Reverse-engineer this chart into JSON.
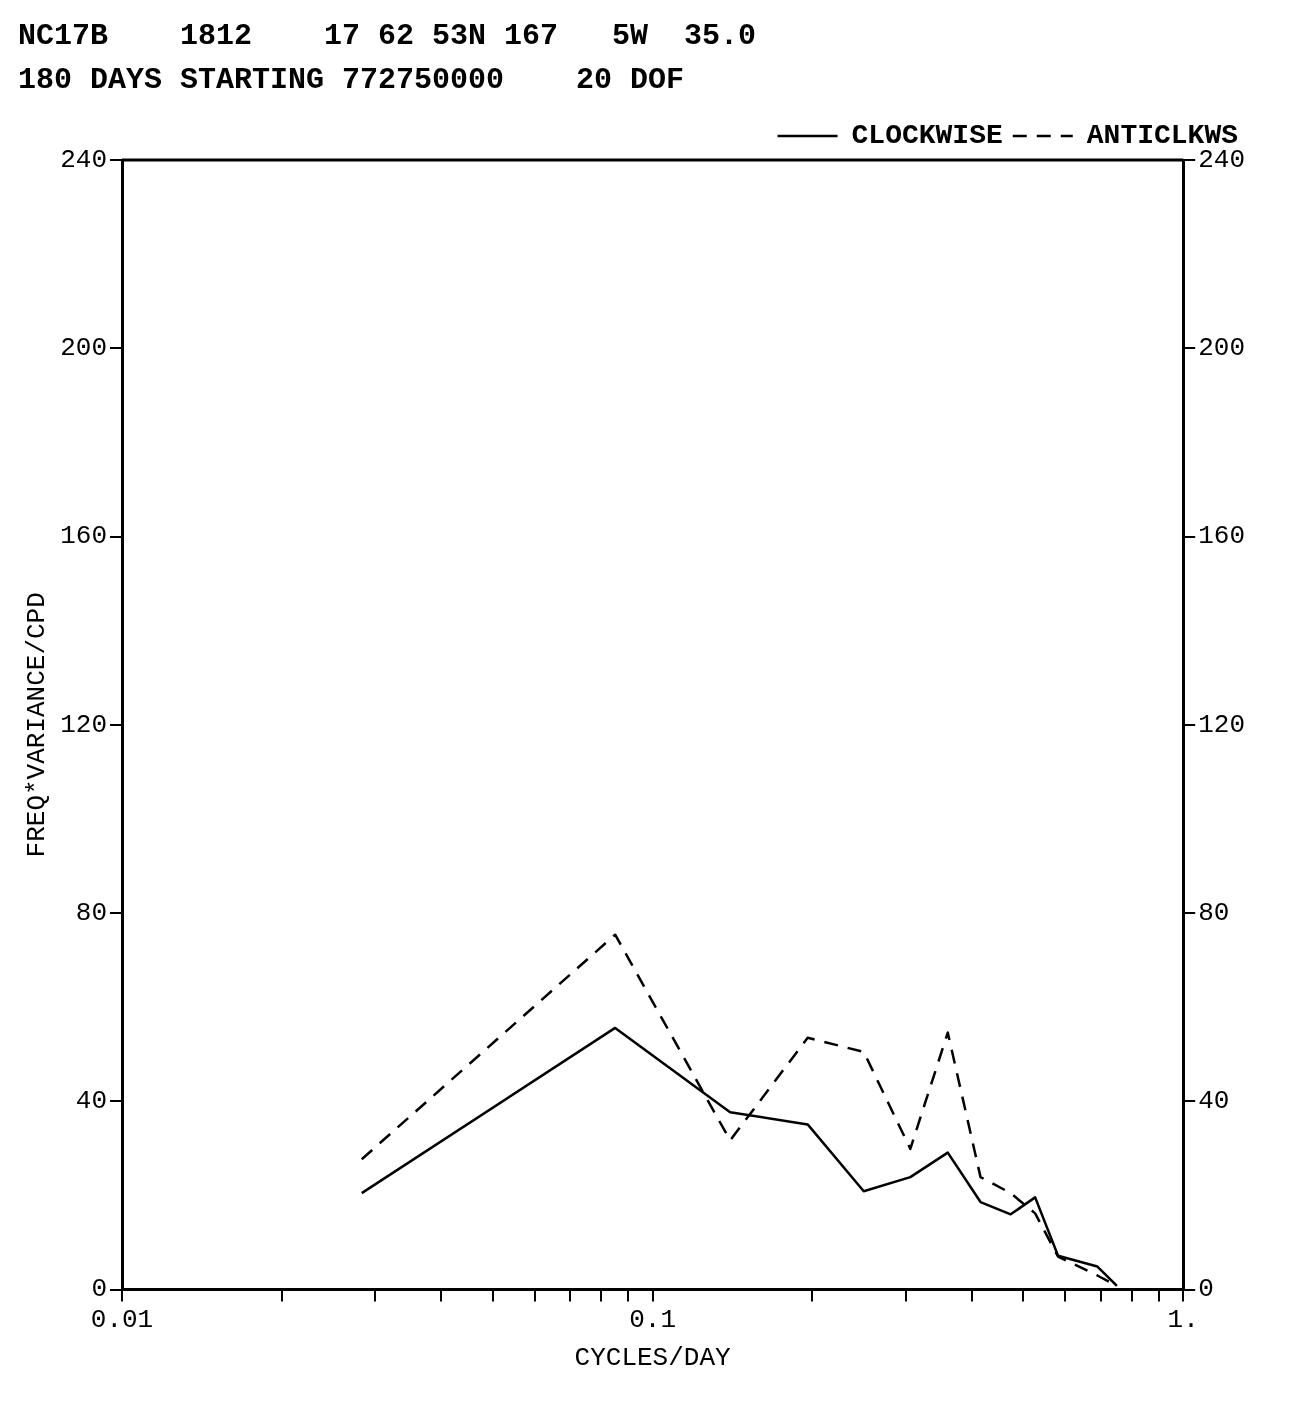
{
  "chart_data": {
    "type": "line",
    "title": "NC17B    1812    17 62 53N 167   5W  35.0",
    "subtitle": "180 DAYS STARTING 772750000    20 DOF",
    "xlabel": "CYCLES/DAY",
    "ylabel": "FREQ*VARIANCE/CPD",
    "log": "x",
    "grid": false,
    "legend": "top right",
    "marker": "none",
    "x": [
      0.0283,
      0.085,
      0.14,
      0.196,
      0.25,
      0.306,
      0.36,
      0.415,
      0.473,
      0.526,
      0.581,
      0.689,
      0.75
    ],
    "series": [
      {
        "name": "CLOCKWISE",
        "color": "#000000",
        "line_style": "solid",
        "values": [
          20.5,
          55.6,
          37.7,
          35.1,
          20.9,
          23.9,
          29.1,
          18.6,
          16.0,
          19.6,
          7.2,
          4.9,
          0.8
        ]
      },
      {
        "name": "ANTICLKWS",
        "color": "#000000",
        "line_style": "dashed",
        "values": [
          27.7,
          75.4,
          31.7,
          53.5,
          50.5,
          29.9,
          54.6,
          23.9,
          20.5,
          16.2,
          7.0,
          3.0,
          0.8
        ]
      }
    ],
    "xlim": [
      0.01,
      1
    ],
    "xticks": [
      0.01,
      {
        "value": 0.02,
        "label": null
      },
      {
        "value": 0.03,
        "label": null
      },
      {
        "value": 0.04,
        "label": null
      },
      {
        "value": 0.05,
        "label": null
      },
      {
        "value": 0.06,
        "label": null
      },
      {
        "value": 0.07,
        "label": null
      },
      {
        "value": 0.08,
        "label": null
      },
      {
        "value": 0.09,
        "label": null
      },
      0.1,
      {
        "value": 0.2,
        "label": null
      },
      {
        "value": 0.3,
        "label": null
      },
      {
        "value": 0.4,
        "label": null
      },
      {
        "value": 0.5,
        "label": null
      },
      {
        "value": 0.6,
        "label": null
      },
      {
        "value": 0.7,
        "label": null
      },
      {
        "value": 0.8,
        "label": null
      },
      {
        "value": 0.9,
        "label": null
      },
      {
        "value": 1,
        "label": "1."
      }
    ],
    "ylim": [
      0,
      240
    ],
    "yticks": [
      0,
      40,
      80,
      120,
      160,
      200,
      240
    ],
    "y2lim": [
      0,
      240
    ],
    "y2ticks": [
      0,
      40,
      80,
      120,
      160,
      200,
      240
    ]
  }
}
